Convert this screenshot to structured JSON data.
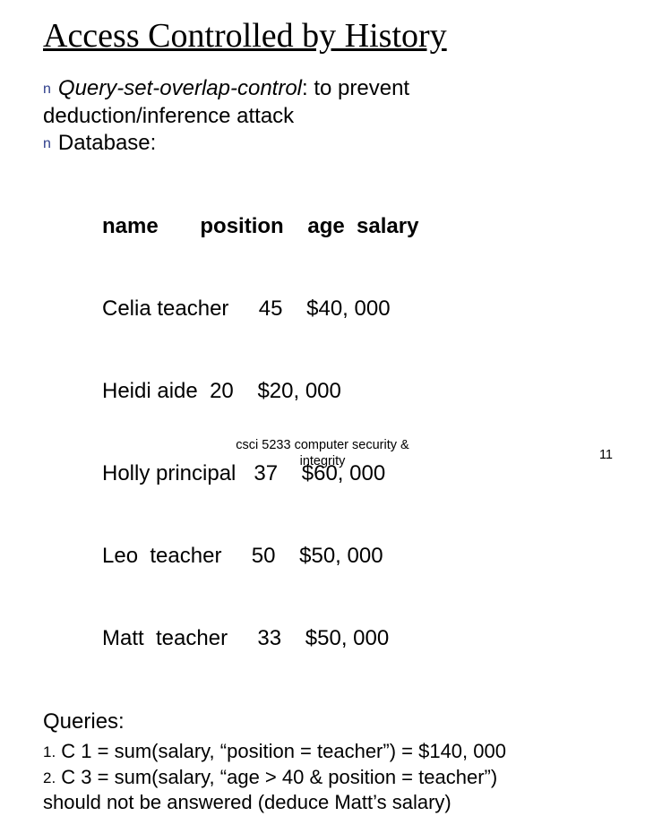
{
  "title": "Access Controlled by History",
  "bullet1": {
    "term": "Query-set-overlap-control",
    "rest": ": to prevent"
  },
  "line2": "deduction/inference attack",
  "bullet2": "Database:",
  "table": {
    "header": "name       position    age  salary",
    "rows": [
      "Celia teacher     45    $40, 000",
      "Heidi aide  20    $20, 000",
      "Holly principal   37    $60, 000",
      "Leo  teacher     50    $50, 000",
      "Matt  teacher     33    $50, 000"
    ]
  },
  "queries_label": "Queries:",
  "q1": {
    "num": "1.",
    "text": " C 1 = sum(salary, “position = teacher”) = $140, 000"
  },
  "q2": {
    "num": "2.",
    "text": " C 3 = sum(salary, “age > 40 & position = teacher”)"
  },
  "q2b": "should not be answered (deduce Matt’s salary)",
  "footer": {
    "line1": "csci 5233 computer security &",
    "line2": "integrity"
  },
  "page": "11",
  "colors": {
    "bullet": "#2d3e8b",
    "text": "#000000",
    "background": "#ffffff"
  }
}
